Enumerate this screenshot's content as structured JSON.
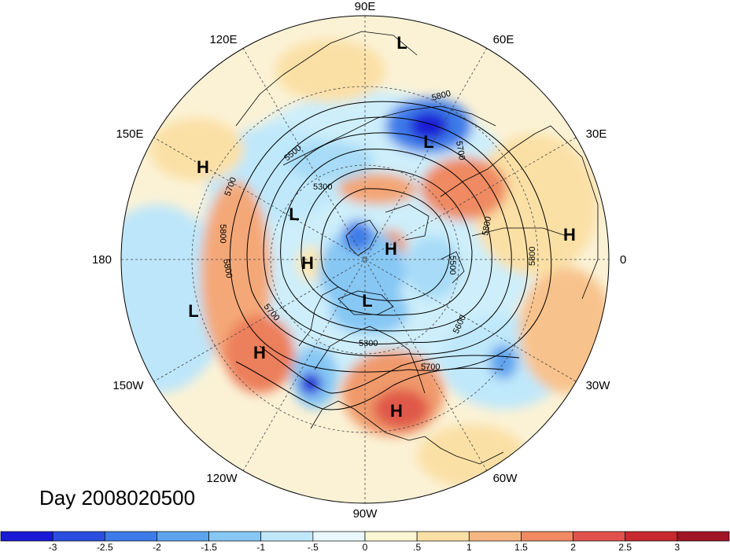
{
  "title": "Day 2008020500",
  "longitude_labels": [
    {
      "text": "90E"
    },
    {
      "text": "60E"
    },
    {
      "text": "30E"
    },
    {
      "text": "0"
    },
    {
      "text": "30W"
    },
    {
      "text": "60W"
    },
    {
      "text": "90W"
    },
    {
      "text": "120W"
    },
    {
      "text": "150W"
    },
    {
      "text": "180"
    },
    {
      "text": "150E"
    },
    {
      "text": "120E"
    }
  ],
  "pressure_centers": [
    {
      "type": "L"
    },
    {
      "type": "L"
    },
    {
      "type": "H"
    },
    {
      "type": "L"
    },
    {
      "type": "H"
    },
    {
      "type": "H"
    },
    {
      "type": "H"
    },
    {
      "type": "L"
    },
    {
      "type": "L"
    },
    {
      "type": "H"
    },
    {
      "type": "H"
    }
  ],
  "contour_labels": [
    "5800",
    "5700",
    "5500",
    "5300",
    "5700",
    "5800",
    "5800",
    "5700",
    "5300",
    "5500",
    "5600",
    "5700",
    "5800",
    "5800"
  ],
  "colorbar": {
    "tick_labels": [
      "-3",
      "-2.5",
      "-2",
      "-1.5",
      "-1",
      "-.5",
      "0",
      ".5",
      "1",
      "1.5",
      "2",
      "2.5",
      "3"
    ],
    "colors": [
      "#1a1ad6",
      "#2a4fe0",
      "#3d7ce8",
      "#5ea3ee",
      "#86c7f4",
      "#bfe8fb",
      "#e8f8fd",
      "#fdf6d3",
      "#fbe0a6",
      "#f6b680",
      "#ef8a62",
      "#e2524d",
      "#c82a2f",
      "#a01525"
    ]
  }
}
